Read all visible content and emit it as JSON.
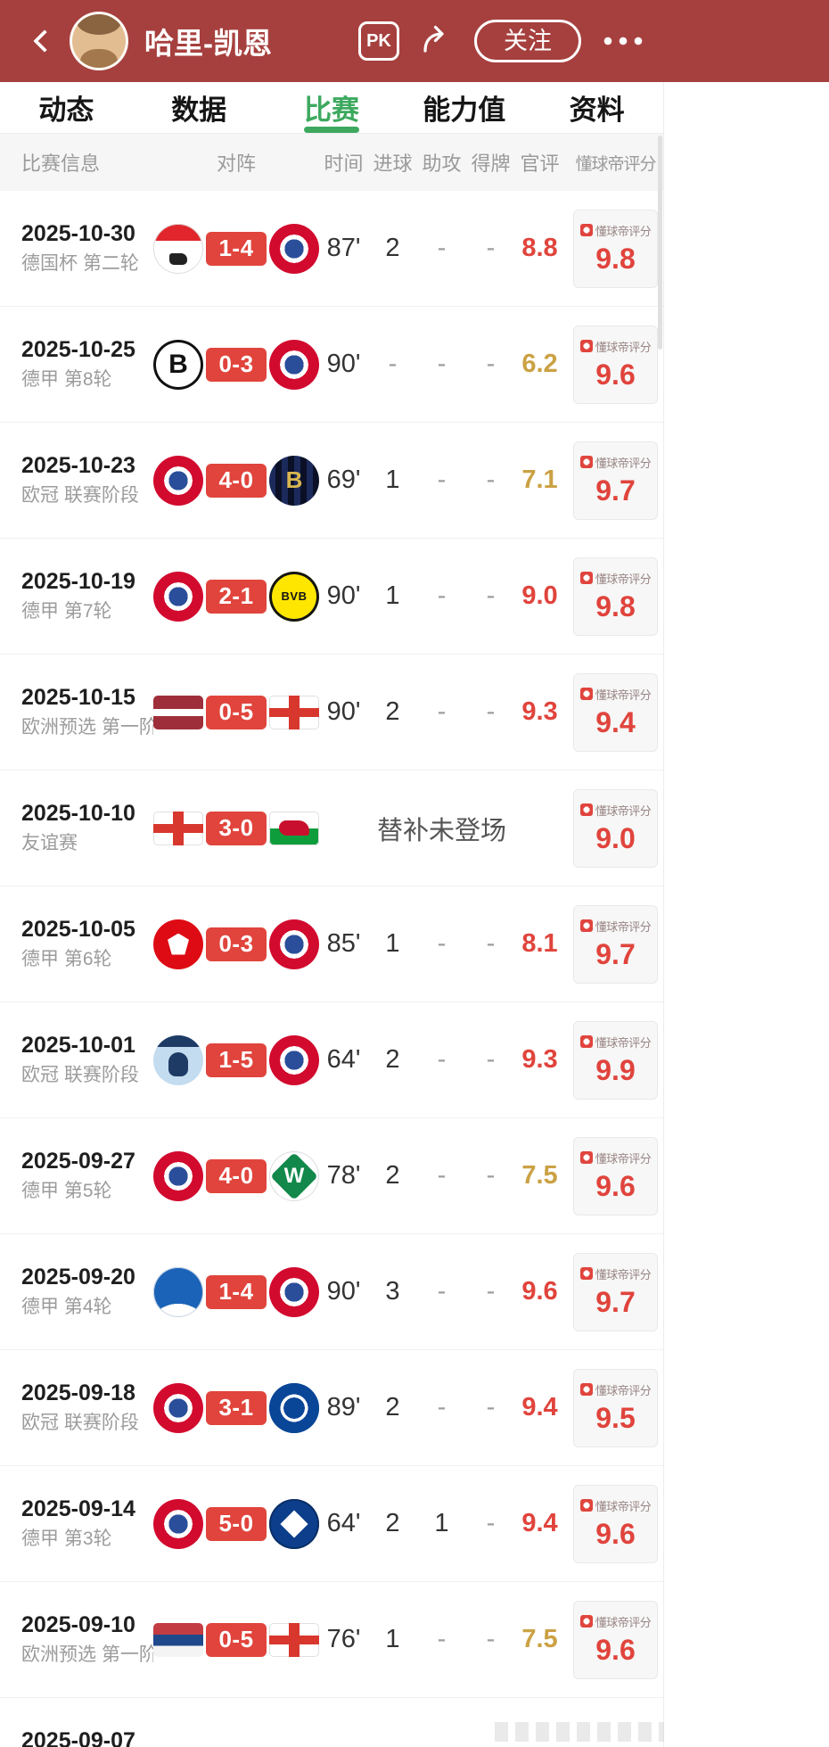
{
  "header": {
    "title": "哈里-凯恩",
    "pk_label": "PK",
    "follow_label": "关注"
  },
  "tabs": [
    {
      "key": "feed",
      "label": "动态",
      "active": false
    },
    {
      "key": "stats",
      "label": "数据",
      "active": false
    },
    {
      "key": "matches",
      "label": "比赛",
      "active": true
    },
    {
      "key": "ability",
      "label": "能力值",
      "active": false
    },
    {
      "key": "profile",
      "label": "资料",
      "active": false
    }
  ],
  "table": {
    "columns": [
      "比赛信息",
      "对阵",
      "时间",
      "进球",
      "助攻",
      "得牌",
      "官评",
      "懂球帝评分"
    ],
    "column_keys": [
      "match-info",
      "versus",
      "time",
      "goals",
      "assists",
      "cards",
      "official-rating",
      "dqd-rating"
    ],
    "dqd_label": "懂球帝评分",
    "rows": [
      {
        "date": "2025-10-30",
        "competition": "德国杯 第二轮",
        "home": {
          "logo": "koeln",
          "shape": "circle"
        },
        "score": "1-4",
        "away": {
          "logo": "bayern",
          "shape": "circle"
        },
        "time": "87'",
        "goals": "2",
        "assists": "-",
        "cards": "-",
        "official_rating": "8.8",
        "rating_tier": "red",
        "dqd_rating": "9.8"
      },
      {
        "date": "2025-10-25",
        "competition": "德甲 第8轮",
        "home": {
          "logo": "gladbach",
          "shape": "circle"
        },
        "score": "0-3",
        "away": {
          "logo": "bayern",
          "shape": "circle"
        },
        "time": "90'",
        "goals": "-",
        "assists": "-",
        "cards": "-",
        "official_rating": "6.2",
        "rating_tier": "gold",
        "dqd_rating": "9.6"
      },
      {
        "date": "2025-10-23",
        "competition": "欧冠 联赛阶段",
        "home": {
          "logo": "bayern",
          "shape": "circle"
        },
        "score": "4-0",
        "away": {
          "logo": "brugge",
          "shape": "circle"
        },
        "time": "69'",
        "goals": "1",
        "assists": "-",
        "cards": "-",
        "official_rating": "7.1",
        "rating_tier": "gold",
        "dqd_rating": "9.7"
      },
      {
        "date": "2025-10-19",
        "competition": "德甲 第7轮",
        "home": {
          "logo": "bayern",
          "shape": "circle"
        },
        "score": "2-1",
        "away": {
          "logo": "dortmund",
          "shape": "circle"
        },
        "time": "90'",
        "goals": "1",
        "assists": "-",
        "cards": "-",
        "official_rating": "9.0",
        "rating_tier": "red",
        "dqd_rating": "9.8"
      },
      {
        "date": "2025-10-15",
        "competition": "欧洲预选 第一阶…",
        "home": {
          "logo": "latvia",
          "shape": "flag"
        },
        "score": "0-5",
        "away": {
          "logo": "england",
          "shape": "flag"
        },
        "time": "90'",
        "goals": "2",
        "assists": "-",
        "cards": "-",
        "official_rating": "9.3",
        "rating_tier": "red",
        "dqd_rating": "9.4"
      },
      {
        "date": "2025-10-10",
        "competition": "友谊赛",
        "home": {
          "logo": "england",
          "shape": "flag"
        },
        "score": "3-0",
        "away": {
          "logo": "wales",
          "shape": "flag"
        },
        "time": "",
        "goals": "",
        "assists": "",
        "cards": "",
        "official_rating": "",
        "note": "替补未登场",
        "dqd_rating": "9.0"
      },
      {
        "date": "2025-10-05",
        "competition": "德甲 第6轮",
        "home": {
          "logo": "frankfurt",
          "shape": "circle"
        },
        "score": "0-3",
        "away": {
          "logo": "bayern",
          "shape": "circle"
        },
        "time": "85'",
        "goals": "1",
        "assists": "-",
        "cards": "-",
        "official_rating": "8.1",
        "rating_tier": "red",
        "dqd_rating": "9.7"
      },
      {
        "date": "2025-10-01",
        "competition": "欧冠 联赛阶段",
        "home": {
          "logo": "pafos",
          "shape": "circle"
        },
        "score": "1-5",
        "away": {
          "logo": "bayern",
          "shape": "circle"
        },
        "time": "64'",
        "goals": "2",
        "assists": "-",
        "cards": "-",
        "official_rating": "9.3",
        "rating_tier": "red",
        "dqd_rating": "9.9"
      },
      {
        "date": "2025-09-27",
        "competition": "德甲 第5轮",
        "home": {
          "logo": "bayern",
          "shape": "circle"
        },
        "score": "4-0",
        "away": {
          "logo": "bremen",
          "shape": "circle"
        },
        "time": "78'",
        "goals": "2",
        "assists": "-",
        "cards": "-",
        "official_rating": "7.5",
        "rating_tier": "gold",
        "dqd_rating": "9.6"
      },
      {
        "date": "2025-09-20",
        "competition": "德甲 第4轮",
        "home": {
          "logo": "hoffenheim",
          "shape": "circle"
        },
        "score": "1-4",
        "away": {
          "logo": "bayern",
          "shape": "circle"
        },
        "time": "90'",
        "goals": "3",
        "assists": "-",
        "cards": "-",
        "official_rating": "9.6",
        "rating_tier": "red",
        "dqd_rating": "9.7"
      },
      {
        "date": "2025-09-18",
        "competition": "欧冠 联赛阶段",
        "home": {
          "logo": "bayern",
          "shape": "circle"
        },
        "score": "3-1",
        "away": {
          "logo": "chelsea",
          "shape": "circle"
        },
        "time": "89'",
        "goals": "2",
        "assists": "-",
        "cards": "-",
        "official_rating": "9.4",
        "rating_tier": "red",
        "dqd_rating": "9.5"
      },
      {
        "date": "2025-09-14",
        "competition": "德甲 第3轮",
        "home": {
          "logo": "bayern",
          "shape": "circle"
        },
        "score": "5-0",
        "away": {
          "logo": "hamburg",
          "shape": "circle"
        },
        "time": "64'",
        "goals": "2",
        "assists": "1",
        "cards": "-",
        "official_rating": "9.4",
        "rating_tier": "red",
        "dqd_rating": "9.6"
      },
      {
        "date": "2025-09-10",
        "competition": "欧洲预选 第一阶…",
        "home": {
          "logo": "serbia",
          "shape": "flag"
        },
        "score": "0-5",
        "away": {
          "logo": "england",
          "shape": "flag"
        },
        "time": "76'",
        "goals": "1",
        "assists": "-",
        "cards": "-",
        "official_rating": "7.5",
        "rating_tier": "gold",
        "dqd_rating": "9.6"
      },
      {
        "date": "2025-09-07",
        "competition": "",
        "home": null,
        "score": "",
        "away": null,
        "time": "",
        "goals": "",
        "assists": "",
        "cards": "",
        "official_rating": "",
        "dqd_rating": ""
      }
    ]
  },
  "colors": {
    "header_bg": "#A6403E",
    "score_badge_red": "#E0443C",
    "rating_red": "#E0443C",
    "rating_gold": "#CBA144",
    "active_tab_green": "#3DA95F"
  }
}
